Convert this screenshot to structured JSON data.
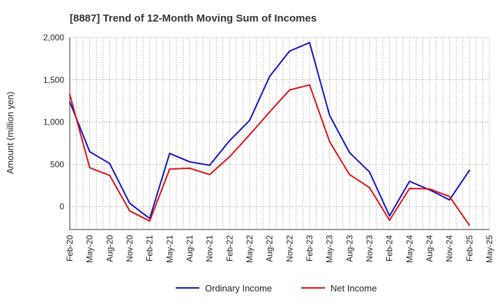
{
  "chart_data": {
    "type": "line",
    "title": "[8887]  Trend of 12-Month Moving Sum of Incomes",
    "xlabel": "",
    "ylabel": "Amount (million yen)",
    "ylim": [
      -270,
      2000
    ],
    "yticks": [
      0,
      500,
      1000,
      1500,
      2000
    ],
    "ytick_labels": [
      "0",
      "500",
      "1,000",
      "1,500",
      "2,000"
    ],
    "x_tick_labels": [
      "Feb-20",
      "May-20",
      "Aug-20",
      "Nov-20",
      "Feb-21",
      "May-21",
      "Aug-21",
      "Nov-21",
      "Feb-22",
      "May-22",
      "Aug-22",
      "Nov-22",
      "Feb-23",
      "May-23",
      "Aug-23",
      "Nov-23",
      "Feb-24",
      "May-24",
      "Aug-24",
      "Nov-24",
      "Feb-25",
      "May-25"
    ],
    "grid": true,
    "legend_position": "bottom",
    "series": [
      {
        "name": "Ordinary Income",
        "color": "#1111cc",
        "values": [
          1240,
          650,
          510,
          40,
          -140,
          630,
          530,
          490,
          780,
          1020,
          1540,
          1840,
          1940,
          1080,
          640,
          410,
          -110,
          300,
          200,
          80,
          430
        ]
      },
      {
        "name": "Net Income",
        "color": "#dd1111",
        "values": [
          1330,
          460,
          370,
          -50,
          -170,
          445,
          455,
          380,
          590,
          850,
          1120,
          1380,
          1440,
          770,
          380,
          225,
          -160,
          215,
          210,
          120,
          -220
        ]
      }
    ]
  }
}
